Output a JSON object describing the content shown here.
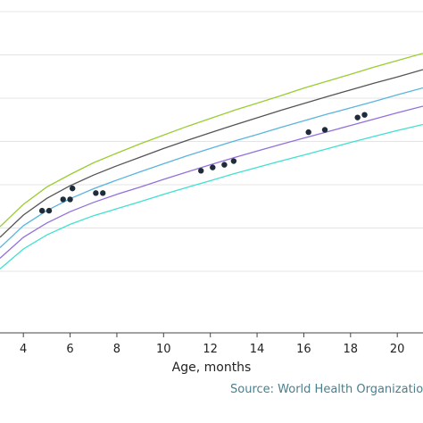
{
  "chart_data": {
    "type": "line",
    "title": "",
    "xlabel": "Age, months",
    "ylabel": "",
    "source": "Source: World Health Organization",
    "xlim": [
      3.0,
      21.1
    ],
    "ylim": [
      0,
      100
    ],
    "x_ticks": [
      4,
      6,
      8,
      10,
      12,
      14,
      16,
      18,
      20
    ],
    "y_ticks": [
      18.5,
      31.5,
      44.5,
      57.5,
      70.5,
      83.5,
      96.5
    ],
    "grid": true,
    "legend": "none",
    "curve_x": [
      3,
      4,
      5,
      6,
      7,
      8,
      9,
      10,
      11,
      12,
      13,
      14,
      15,
      16,
      17,
      18,
      19,
      20,
      21.1
    ],
    "series": [
      {
        "color": "#9acd32",
        "values": [
          31.9,
          38.6,
          43.8,
          47.6,
          51.1,
          54.0,
          56.8,
          59.4,
          62.0,
          64.4,
          66.8,
          69.0,
          71.2,
          73.5,
          75.6,
          77.7,
          79.8,
          81.8,
          84.0
        ]
      },
      {
        "color": "#555555",
        "values": [
          28.7,
          35.4,
          40.4,
          44.2,
          47.4,
          50.2,
          52.8,
          55.4,
          57.8,
          60.1,
          62.4,
          64.6,
          66.8,
          68.9,
          71.0,
          73.0,
          75.0,
          76.9,
          79.1
        ]
      },
      {
        "color": "#5ab4e0",
        "values": [
          25.6,
          32.2,
          36.7,
          40.3,
          43.3,
          45.9,
          48.4,
          50.8,
          53.2,
          55.4,
          57.6,
          59.6,
          61.7,
          63.7,
          65.7,
          67.6,
          69.5,
          71.5,
          73.6
        ]
      },
      {
        "color": "#9370db",
        "values": [
          22.4,
          28.7,
          33.0,
          36.4,
          39.2,
          41.6,
          43.8,
          46.1,
          48.3,
          50.5,
          52.6,
          54.6,
          56.6,
          58.5,
          60.4,
          62.3,
          64.2,
          66.1,
          68.1
        ]
      },
      {
        "color": "#40e0d0",
        "values": [
          19.2,
          25.2,
          29.4,
          32.6,
          35.2,
          37.3,
          39.4,
          41.6,
          43.7,
          45.7,
          47.8,
          49.7,
          51.6,
          53.4,
          55.3,
          57.2,
          59.0,
          60.8,
          62.6
        ]
      }
    ],
    "points": {
      "color": "#1f2d3a",
      "x": [
        4.8,
        5.1,
        5.7,
        6.0,
        6.1,
        7.1,
        7.4,
        11.6,
        12.1,
        12.6,
        13.0,
        16.2,
        16.9,
        18.3,
        18.6
      ],
      "y": [
        36.7,
        36.7,
        40.1,
        40.1,
        43.4,
        42.0,
        42.0,
        48.7,
        49.7,
        50.5,
        51.6,
        60.3,
        61.0,
        64.7,
        65.5
      ]
    },
    "point_color": "#1f2d3a"
  }
}
